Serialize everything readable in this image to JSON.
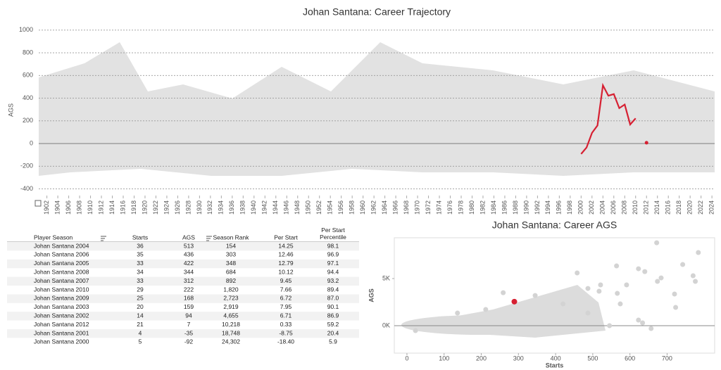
{
  "chart_data": [
    {
      "type": "line",
      "title": "Johan Santana: Career Trajectory",
      "y_label": "AGS",
      "x": [
        2000,
        2001,
        2002,
        2003,
        2004,
        2005,
        2006,
        2007,
        2008,
        2009,
        2010,
        2011,
        2012
      ],
      "series": [
        {
          "color": "#d62032",
          "values": [
            -92,
            -35,
            94,
            159,
            513,
            422,
            436,
            312,
            344,
            168,
            222,
            null,
            7
          ]
        }
      ],
      "xlim": [
        1900.5,
        2024.5
      ],
      "xticks": [
        1902,
        1904,
        1906,
        1908,
        1910,
        1912,
        1914,
        1916,
        1918,
        1920,
        1922,
        1924,
        1926,
        1928,
        1930,
        1932,
        1934,
        1936,
        1938,
        1940,
        1942,
        1944,
        1946,
        1948,
        1950,
        1952,
        1954,
        1956,
        1958,
        1960,
        1962,
        1964,
        1966,
        1968,
        1970,
        1972,
        1974,
        1976,
        1978,
        1980,
        1982,
        1984,
        1986,
        1988,
        1990,
        1992,
        1994,
        1996,
        1998,
        2000,
        2002,
        2004,
        2006,
        2008,
        2010,
        2012,
        2014,
        2016,
        2018,
        2020,
        2022,
        2024
      ],
      "ylim": [
        -440,
        1030
      ],
      "yticks": [
        -400,
        -200,
        0,
        200,
        400,
        600,
        800,
        1000
      ],
      "grid": true
    },
    {
      "type": "scatter",
      "title": "Johan Santana: Career AGS",
      "x_label": "Starts",
      "y_label": "AGS",
      "xlim": [
        -34,
        828
      ],
      "xticks": [
        0,
        100,
        200,
        300,
        400,
        500,
        600,
        700
      ],
      "ylim": [
        -2910,
        9330
      ],
      "yticks": [
        {
          "value": 0,
          "label": "0K"
        },
        {
          "value": 5000,
          "label": "5K"
        }
      ],
      "series": [
        {
          "color": "#d3d3d3",
          "x": [
            672,
            784,
            742,
            623,
            564,
            640,
            674,
            776,
            770,
            684,
            720,
            723,
            574,
            566,
            458,
            487,
            517,
            623,
            657,
            634,
            545,
            259,
            345,
            420,
            212,
            136,
            23,
            487,
            591,
            521
          ],
          "y": [
            8800,
            7760,
            6490,
            6040,
            6340,
            5740,
            4700,
            4700,
            5300,
            5070,
            3360,
            1940,
            2310,
            3430,
            5600,
            3950,
            3660,
            600,
            -300,
            300,
            0,
            3500,
            3200,
            2310,
            1720,
            1340,
            -520,
            1340,
            4330,
            4330
          ]
        },
        {
          "color": "#d62032",
          "x": [
            289
          ],
          "y": [
            2550
          ]
        }
      ]
    }
  ],
  "table": {
    "columns": [
      "Player Season",
      "Starts",
      "AGS",
      "Season Rank",
      "Per Start",
      "Per Start Percentile"
    ],
    "rows": [
      [
        "Johan Santana 2004",
        "36",
        "513",
        "154",
        "14.25",
        "98.1"
      ],
      [
        "Johan Santana 2006",
        "35",
        "436",
        "303",
        "12.46",
        "96.9"
      ],
      [
        "Johan Santana 2005",
        "33",
        "422",
        "348",
        "12.79",
        "97.1"
      ],
      [
        "Johan Santana 2008",
        "34",
        "344",
        "684",
        "10.12",
        "94.4"
      ],
      [
        "Johan Santana 2007",
        "33",
        "312",
        "892",
        "9.45",
        "93.2"
      ],
      [
        "Johan Santana 2010",
        "29",
        "222",
        "1,820",
        "7.66",
        "89.4"
      ],
      [
        "Johan Santana 2009",
        "25",
        "168",
        "2,723",
        "6.72",
        "87.0"
      ],
      [
        "Johan Santana 2003",
        "20",
        "159",
        "2,919",
        "7.95",
        "90.1"
      ],
      [
        "Johan Santana 2002",
        "14",
        "94",
        "4,655",
        "6.71",
        "86.9"
      ],
      [
        "Johan Santana 2012",
        "21",
        "7",
        "10,218",
        "0.33",
        "59.2"
      ],
      [
        "Johan Santana 2001",
        "4",
        "-35",
        "18,748",
        "-8.75",
        "20.4"
      ],
      [
        "Johan Santana 2000",
        "5",
        "-92",
        "24,302",
        "-18.40",
        "5.9"
      ]
    ]
  }
}
